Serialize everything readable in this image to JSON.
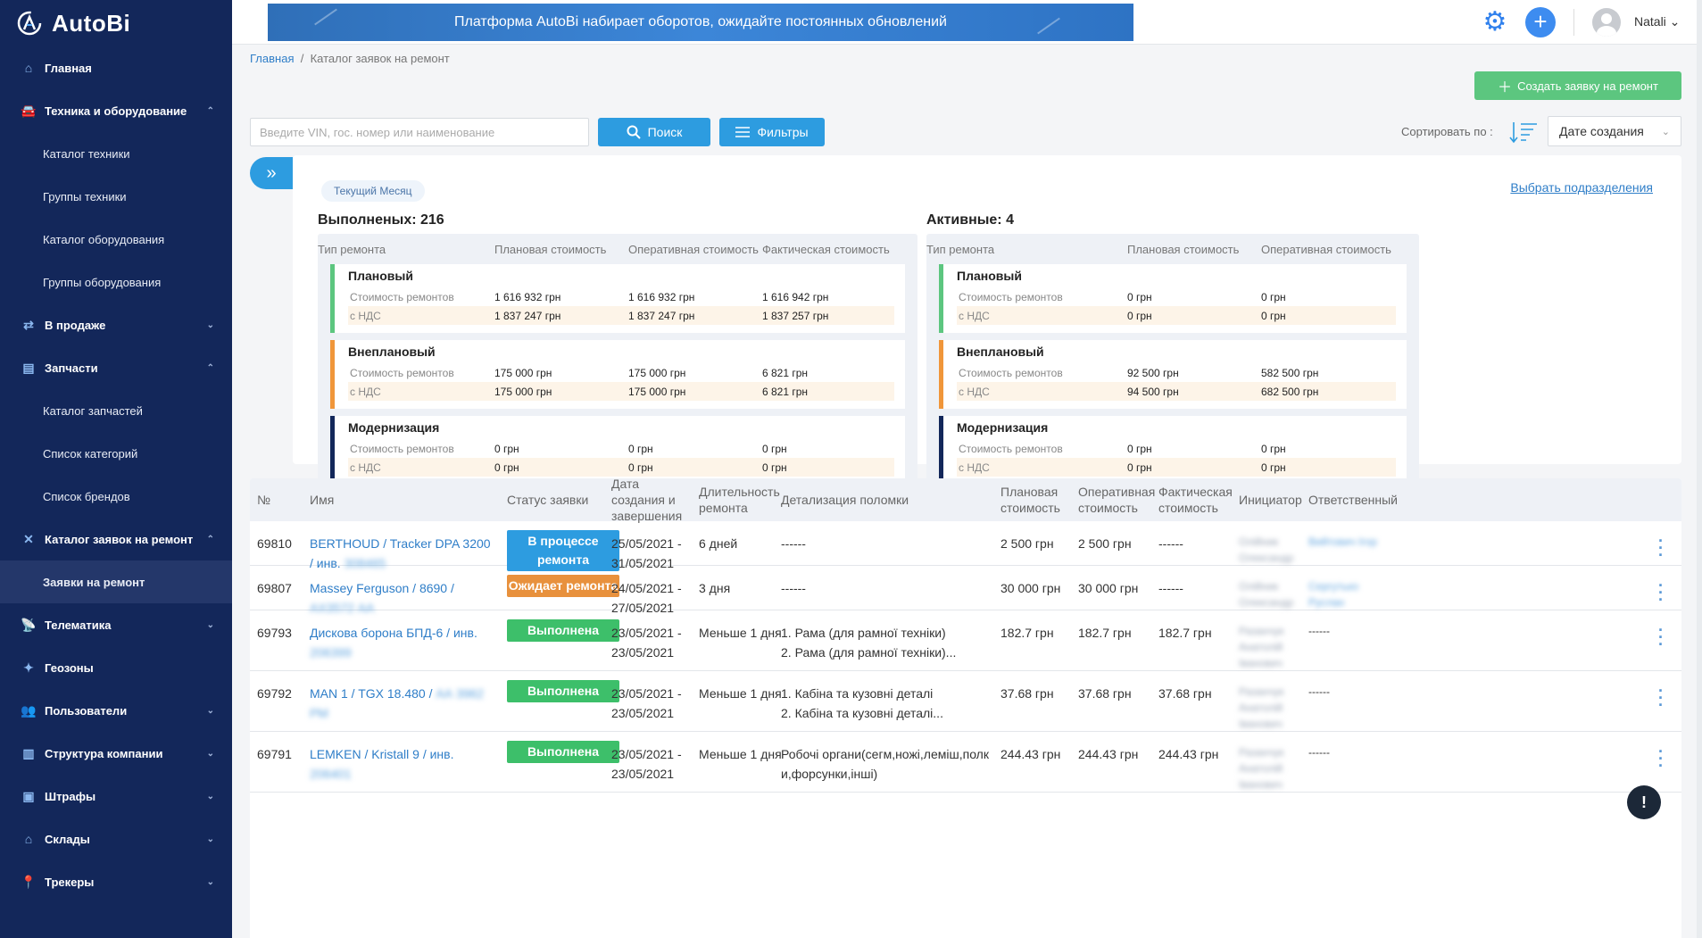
{
  "app": {
    "name": "AutoBi"
  },
  "banner": {
    "text": "Платформа AutoBi набирает оборотов, ожидайте постоянных обновлений"
  },
  "user": {
    "name": "Natali ⌄"
  },
  "sidebar": {
    "items": [
      {
        "label": "Главная",
        "icon": "home-icon",
        "glyph": "⌂",
        "chev": ""
      },
      {
        "label": "Техника и оборудование",
        "icon": "car-icon",
        "glyph": "🚘",
        "chev": "⌃"
      },
      {
        "label": "Каталог техники",
        "sub": true
      },
      {
        "label": "Группы техники",
        "sub": true
      },
      {
        "label": "Каталог оборудования",
        "sub": true
      },
      {
        "label": "Группы оборудования",
        "sub": true
      },
      {
        "label": "В продаже",
        "icon": "sale-icon",
        "glyph": "⇄",
        "chev": "⌄"
      },
      {
        "label": "Запчасти",
        "icon": "parts-icon",
        "glyph": "▤",
        "chev": "⌃"
      },
      {
        "label": "Каталог запчастей",
        "sub": true
      },
      {
        "label": "Список категорий",
        "sub": true
      },
      {
        "label": "Список брендов",
        "sub": true
      },
      {
        "label": "Каталог заявок на ремонт",
        "icon": "repair-icon",
        "glyph": "✕",
        "chev": "⌃"
      },
      {
        "label": "Заявки на ремонт",
        "sub": true,
        "active": true
      },
      {
        "label": "Телематика",
        "icon": "telematics-icon",
        "glyph": "📡",
        "chev": "⌄"
      },
      {
        "label": "Геозоны",
        "icon": "geozone-icon",
        "glyph": "✦",
        "chev": ""
      },
      {
        "label": "Пользователи",
        "icon": "users-icon",
        "glyph": "👥",
        "chev": "⌄"
      },
      {
        "label": "Структура компании",
        "icon": "company-icon",
        "glyph": "▥",
        "chev": "⌄"
      },
      {
        "label": "Штрафы",
        "icon": "fines-icon",
        "glyph": "▣",
        "chev": "⌄"
      },
      {
        "label": "Склады",
        "icon": "warehouse-icon",
        "glyph": "⌂",
        "chev": "⌄"
      },
      {
        "label": "Трекеры",
        "icon": "tracker-icon",
        "glyph": "📍",
        "chev": "⌄"
      }
    ]
  },
  "breadcrumb": {
    "home": "Главная",
    "sep": "/",
    "current": "Каталог заявок на ремонт"
  },
  "toolbar": {
    "create_label": "Создать заявку на ремонт",
    "search_placeholder": "Введите VIN, гос. номер или наименование",
    "search_label": "Поиск",
    "filter_label": "Фильтры",
    "sort_label": "Сортировать по :",
    "sort_value": "Дате создания"
  },
  "summary": {
    "chip": "Текущий Месяц",
    "select_divisions": "Выбрать подразделения",
    "completed": {
      "title": "Выполненых: 216",
      "headers": [
        "Тип ремонта",
        "Плановая стоимость",
        "Оперативная стоимость",
        "Фактическая стоимость"
      ],
      "blocks": [
        {
          "name": "Плановый",
          "color": "#5cc67f",
          "cost_label": "Стоимость ремонтов",
          "nds_label": "с НДС",
          "cost": [
            "1 616 932 грн",
            "1 616 932 грн",
            "1 616 942 грн"
          ],
          "nds": [
            "1 837 247 грн",
            "1 837 247 грн",
            "1 837 257 грн"
          ]
        },
        {
          "name": "Внеплановый",
          "color": "#f0963a",
          "cost_label": "Стоимость ремонтов",
          "nds_label": "с НДС",
          "cost": [
            "175 000 грн",
            "175 000 грн",
            "6 821 грн"
          ],
          "nds": [
            "175 000 грн",
            "175 000 грн",
            "6 821 грн"
          ]
        },
        {
          "name": "Модернизация",
          "color": "#13275a",
          "cost_label": "Стоимость ремонтов",
          "nds_label": "с НДС",
          "cost": [
            "0 грн",
            "0 грн",
            "0 грн"
          ],
          "nds": [
            "0 грн",
            "0 грн",
            "0 грн"
          ]
        }
      ]
    },
    "active": {
      "title": "Активные: 4",
      "headers": [
        "Тип ремонта",
        "Плановая стоимость",
        "Оперативная стоимость"
      ],
      "blocks": [
        {
          "name": "Плановый",
          "color": "#5cc67f",
          "cost_label": "Стоимость ремонтов",
          "nds_label": "с НДС",
          "cost": [
            "0 грн",
            "0 грн"
          ],
          "nds": [
            "0 грн",
            "0 грн"
          ]
        },
        {
          "name": "Внеплановый",
          "color": "#f0963a",
          "cost_label": "Стоимость ремонтов",
          "nds_label": "с НДС",
          "cost": [
            "92 500 грн",
            "582 500 грн"
          ],
          "nds": [
            "94 500 грн",
            "682 500 грн"
          ]
        },
        {
          "name": "Модернизация",
          "color": "#13275a",
          "cost_label": "Стоимость ремонтов",
          "nds_label": "с НДС",
          "cost": [
            "0 грн",
            "0 грн"
          ],
          "nds": [
            "0 грн",
            "0 грн"
          ]
        }
      ]
    }
  },
  "table": {
    "headers": [
      "№",
      "Имя",
      "Статус заявки",
      "Дата создания и завершения",
      "Длительность ремонта",
      "Детализация поломки",
      "Плановая стоимость",
      "Оперативная стоимость",
      "Фактическая стоимость",
      "Инициатор",
      "Ответственный"
    ],
    "rows": [
      {
        "num": "69810",
        "name": "BERTHOUD / Tracker DPA 3200 / инв.",
        "name_blur": "308465",
        "status": "В процессе ремонта",
        "status_color": "#2d9ce0",
        "dates": "25/05/2021 - 31/05/2021",
        "duration": "6 дней",
        "details": "------",
        "plan": "2 500 грн",
        "oper": "2 500 грн",
        "fact": "------",
        "initiator": "Олійник Олександр",
        "responsible": "Вийтович Ігор"
      },
      {
        "num": "69807",
        "name": "Massey Ferguson / 8690 /",
        "name_blur": "АХ3572 АА",
        "status": "Ожидает ремонта",
        "status_color": "#e8913d",
        "dates": "24/05/2021 - 27/05/2021",
        "duration": "3 дня",
        "details": "------",
        "plan": "30 000 грн",
        "oper": "30 000 грн",
        "fact": "------",
        "initiator": "Олійник Олександр",
        "responsible": "Сергутько Руслан"
      },
      {
        "num": "69793",
        "name": "Дискова борона БПД-6 / инв.",
        "name_blur": "206399",
        "status": "Выполнена",
        "status_color": "#3dbf6a",
        "dates": "23/05/2021 - 23/05/2021",
        "duration": "Меньше 1 дня",
        "details": "1. Рама (для рамної техніки)\n2. Рама (для рамної техніки)...",
        "plan": "182.7 грн",
        "oper": "182.7 грн",
        "fact": "182.7 грн",
        "initiator": "Разанчук Анатолій Іванович",
        "responsible": "------"
      },
      {
        "num": "69792",
        "name": "MAN 1 / TGX 18.480 /",
        "name_blur": "АА 3962 РМ",
        "status": "Выполнена",
        "status_color": "#3dbf6a",
        "dates": "23/05/2021 - 23/05/2021",
        "duration": "Меньше 1 дня",
        "details": "1. Кабіна та кузовні деталі\n2. Кабіна та кузовні деталі...",
        "plan": "37.68 грн",
        "oper": "37.68 грн",
        "fact": "37.68 грн",
        "initiator": "Разанчук Анатолій Іванович",
        "responsible": "------"
      },
      {
        "num": "69791",
        "name": "LEMKEN / Kristall 9 / инв.",
        "name_blur": "206401",
        "status": "Выполнена",
        "status_color": "#3dbf6a",
        "dates": "23/05/2021 - 23/05/2021",
        "duration": "Меньше 1 дня",
        "details": "Робочі органи(сегм,ножі,леміш,полки,форсунки,інші)",
        "plan": "244.43 грн",
        "oper": "244.43 грн",
        "fact": "244.43 грн",
        "initiator": "Разанчук Анатолій Іванович",
        "responsible": "------"
      }
    ]
  },
  "help": {
    "label": "!"
  }
}
